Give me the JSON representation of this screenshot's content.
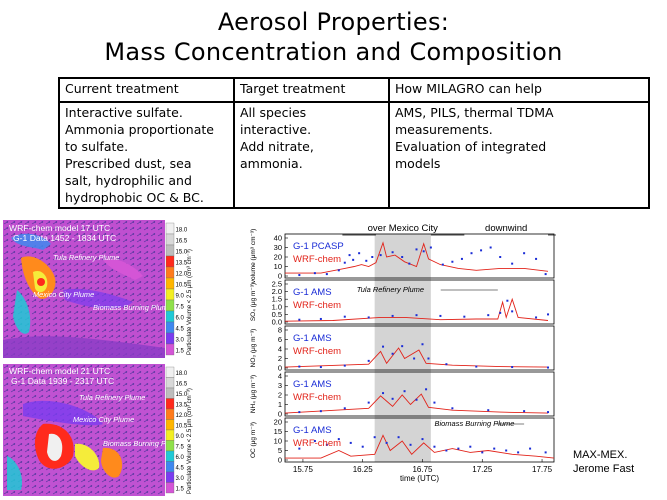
{
  "title": {
    "line1": "Aerosol Properties:",
    "line2": "Mass Concentration and Composition"
  },
  "table": {
    "headers": [
      "Current treatment",
      "Target treatment",
      "How MILAGRO can help"
    ],
    "rows": [
      [
        [
          "Interactive sulfate.",
          "Ammonia proportionate",
          "to sulfate.",
          "Prescribed dust, sea",
          "salt, hydrophilic and",
          "hydrophobic OC & BC."
        ],
        [
          "All species",
          "interactive.",
          "Add nitrate,",
          "ammonia."
        ],
        [
          "AMS, PILS, thermal TDMA",
          "measurements.",
          "Evaluation of integrated",
          "models"
        ]
      ]
    ]
  },
  "maps": [
    {
      "title1": "WRF-chem model 17 UTC",
      "title2": "G-1 Data 1452 - 1834 UTC",
      "labels": [
        "Tula Refinery Plume",
        "Mexico City Plume",
        "Biomass Burning Plume"
      ],
      "colorbar_ticks": [
        "18.0",
        "16.5",
        "15.0",
        "13.5",
        "12.0",
        "10.5",
        "9.0",
        "7.5",
        "6.0",
        "4.5",
        "3.0",
        "1.5"
      ],
      "colorbar_label": "Particulate Volume < 2.5 μm (cm³ cm⁻³)"
    },
    {
      "title1": "WRF-chem model 21 UTC",
      "title2": "G-1 Data 1939 - 2317 UTC",
      "labels": [
        "Tula Refinery Plume",
        "Mexico City Plume",
        "Biomass Burning Plume"
      ],
      "colorbar_ticks": [
        "18.0",
        "16.5",
        "15.0",
        "13.5",
        "12.0",
        "10.5",
        "9.0",
        "7.5",
        "6.0",
        "4.5",
        "3.0",
        "1.5"
      ],
      "colorbar_label": "Particulate Volume < 2.5 μm (cm³ cm⁻³)"
    }
  ],
  "colors": {
    "obs": "#1a2cd6",
    "model": "#e2231a",
    "shade": "#d4d4d4",
    "colorbar": [
      "#f0f0f0",
      "#d8d8d8",
      "#bdbdbd",
      "#ff2a1c",
      "#ff7b1c",
      "#ffb600",
      "#f2ee22",
      "#8fe04a",
      "#1fc9d6",
      "#3f88ef",
      "#7a3cf0",
      "#d455d6"
    ]
  },
  "chart_data": {
    "type": "line",
    "x_axis": {
      "label": "time (UTC)",
      "ticks": [
        "15.75",
        "16.25",
        "16.75",
        "17.25",
        "17.75"
      ],
      "range": [
        15.6,
        17.85
      ]
    },
    "region_labels": {
      "over_city": "over Mexico City",
      "downwind": "downwind"
    },
    "shaded_region": [
      16.35,
      16.82
    ],
    "panels": [
      {
        "ylabel": "volume (μm³ cm⁻³)",
        "yticks": [
          "0",
          "10",
          "20",
          "30",
          "40"
        ],
        "ylim": [
          0,
          40
        ],
        "obs_name": "G-1 PCASP",
        "model_name": "WRF-chem",
        "annotation": "",
        "obs": [
          [
            15.72,
            1
          ],
          [
            15.85,
            3
          ],
          [
            15.95,
            2
          ],
          [
            16.05,
            6
          ],
          [
            16.1,
            14
          ],
          [
            16.14,
            22
          ],
          [
            16.17,
            17
          ],
          [
            16.22,
            24
          ],
          [
            16.28,
            16
          ],
          [
            16.33,
            20
          ],
          [
            16.4,
            22
          ],
          [
            16.5,
            25
          ],
          [
            16.58,
            20
          ],
          [
            16.64,
            13
          ],
          [
            16.7,
            28
          ],
          [
            16.76,
            26
          ],
          [
            16.82,
            30
          ],
          [
            16.92,
            12
          ],
          [
            17.0,
            15
          ],
          [
            17.08,
            18
          ],
          [
            17.16,
            24
          ],
          [
            17.24,
            27
          ],
          [
            17.32,
            30
          ],
          [
            17.4,
            20
          ],
          [
            17.5,
            13
          ],
          [
            17.6,
            24
          ],
          [
            17.7,
            18
          ],
          [
            17.78,
            2
          ]
        ],
        "model": [
          [
            15.6,
            3
          ],
          [
            15.9,
            3
          ],
          [
            16.1,
            8
          ],
          [
            16.18,
            10
          ],
          [
            16.24,
            12
          ],
          [
            16.3,
            10
          ],
          [
            16.36,
            14
          ],
          [
            16.42,
            35
          ],
          [
            16.45,
            20
          ],
          [
            16.52,
            22
          ],
          [
            16.6,
            15
          ],
          [
            16.7,
            10
          ],
          [
            16.76,
            34
          ],
          [
            16.8,
            18
          ],
          [
            16.9,
            12
          ],
          [
            17.05,
            8
          ],
          [
            17.2,
            6
          ],
          [
            17.4,
            8
          ],
          [
            17.6,
            8
          ],
          [
            17.8,
            5
          ]
        ]
      },
      {
        "ylabel": "SO₄ (μg m⁻³)",
        "yticks": [
          "0.0",
          "0.5",
          "1.0",
          "1.5",
          "2.0",
          "2.5"
        ],
        "ylim": [
          0,
          2.5
        ],
        "obs_name": "G-1 AMS",
        "model_name": "WRF-chem",
        "annotation": "Tula Refinery Plume",
        "obs": [
          [
            15.72,
            0.15
          ],
          [
            15.9,
            0.2
          ],
          [
            16.1,
            0.35
          ],
          [
            16.3,
            0.3
          ],
          [
            16.5,
            0.4
          ],
          [
            16.7,
            0.45
          ],
          [
            16.9,
            0.4
          ],
          [
            17.1,
            0.35
          ],
          [
            17.3,
            0.45
          ],
          [
            17.4,
            0.6
          ],
          [
            17.46,
            1.4
          ],
          [
            17.5,
            0.7
          ],
          [
            17.7,
            0.3
          ],
          [
            17.8,
            0.5
          ]
        ],
        "model": [
          [
            15.6,
            0.05
          ],
          [
            16.0,
            0.1
          ],
          [
            16.4,
            0.3
          ],
          [
            16.6,
            0.3
          ],
          [
            16.9,
            0.15
          ],
          [
            17.2,
            0.2
          ],
          [
            17.38,
            0.2
          ],
          [
            17.42,
            1.3
          ],
          [
            17.45,
            0.3
          ],
          [
            17.5,
            1.5
          ],
          [
            17.55,
            0.3
          ],
          [
            17.8,
            0.1
          ]
        ]
      },
      {
        "ylabel": "NO₃ (μg m⁻³)",
        "yticks": [
          "0",
          "2",
          "4",
          "6",
          "8"
        ],
        "ylim": [
          0,
          8
        ],
        "obs_name": "G-1 AMS",
        "model_name": "WRF-chem",
        "annotation": "",
        "obs": [
          [
            15.72,
            0.3
          ],
          [
            15.9,
            0.2
          ],
          [
            16.1,
            0.5
          ],
          [
            16.3,
            1.5
          ],
          [
            16.42,
            4.5
          ],
          [
            16.5,
            3
          ],
          [
            16.58,
            4.6
          ],
          [
            16.68,
            2
          ],
          [
            16.75,
            5
          ],
          [
            16.8,
            2
          ],
          [
            16.95,
            0.8
          ],
          [
            17.2,
            0.3
          ],
          [
            17.5,
            0.2
          ],
          [
            17.8,
            0.1
          ]
        ],
        "model": [
          [
            15.6,
            0.2
          ],
          [
            16.3,
            0.8
          ],
          [
            16.4,
            3.5
          ],
          [
            16.45,
            1
          ],
          [
            16.55,
            4.2
          ],
          [
            16.6,
            2
          ],
          [
            16.72,
            3.8
          ],
          [
            16.78,
            1
          ],
          [
            17.0,
            0.6
          ],
          [
            17.4,
            0.3
          ],
          [
            17.8,
            0.2
          ]
        ]
      },
      {
        "ylabel": "NH₄ (μg m⁻³)",
        "yticks": [
          "0",
          "1",
          "2",
          "3",
          "4"
        ],
        "ylim": [
          0,
          4
        ],
        "obs_name": "G-1 AMS",
        "model_name": "WRF-chem",
        "annotation": "",
        "obs": [
          [
            15.72,
            0.2
          ],
          [
            15.9,
            0.3
          ],
          [
            16.1,
            0.6
          ],
          [
            16.3,
            1.2
          ],
          [
            16.42,
            2.2
          ],
          [
            16.5,
            1.6
          ],
          [
            16.6,
            2.4
          ],
          [
            16.7,
            1.5
          ],
          [
            16.78,
            2.6
          ],
          [
            16.85,
            1.2
          ],
          [
            17.0,
            0.6
          ],
          [
            17.3,
            0.4
          ],
          [
            17.6,
            0.3
          ],
          [
            17.8,
            0.2
          ]
        ],
        "model": [
          [
            15.6,
            0.1
          ],
          [
            16.3,
            0.6
          ],
          [
            16.4,
            1.9
          ],
          [
            16.5,
            0.8
          ],
          [
            16.58,
            2.0
          ],
          [
            16.65,
            1.0
          ],
          [
            16.74,
            2.1
          ],
          [
            16.8,
            0.7
          ],
          [
            17.0,
            0.4
          ],
          [
            17.4,
            0.2
          ],
          [
            17.8,
            0.1
          ]
        ]
      },
      {
        "ylabel": "OC (μg m⁻³)",
        "yticks": [
          "0",
          "5",
          "10",
          "15",
          "20"
        ],
        "ylim": [
          0,
          20
        ],
        "obs_name": "G-1 AMS",
        "model_name": "WRF-chem",
        "annotation": "Biomass Burning Plume",
        "obs": [
          [
            15.72,
            6
          ],
          [
            15.85,
            10
          ],
          [
            15.95,
            8
          ],
          [
            16.05,
            11
          ],
          [
            16.15,
            9
          ],
          [
            16.25,
            7
          ],
          [
            16.35,
            12
          ],
          [
            16.45,
            9
          ],
          [
            16.55,
            12
          ],
          [
            16.65,
            8
          ],
          [
            16.75,
            11
          ],
          [
            16.85,
            7
          ],
          [
            16.95,
            5
          ],
          [
            17.05,
            6
          ],
          [
            17.15,
            7
          ],
          [
            17.25,
            4
          ],
          [
            17.35,
            6
          ],
          [
            17.45,
            5
          ],
          [
            17.55,
            4
          ],
          [
            17.65,
            6
          ],
          [
            17.78,
            4
          ]
        ],
        "model": [
          [
            15.6,
            1
          ],
          [
            15.9,
            1
          ],
          [
            16.05,
            5
          ],
          [
            16.15,
            2
          ],
          [
            16.35,
            3
          ],
          [
            16.42,
            13
          ],
          [
            16.48,
            5
          ],
          [
            16.58,
            10
          ],
          [
            16.66,
            3
          ],
          [
            16.76,
            9
          ],
          [
            16.85,
            4
          ],
          [
            17.0,
            6
          ],
          [
            17.15,
            4
          ],
          [
            17.3,
            5
          ],
          [
            17.5,
            3
          ],
          [
            17.7,
            2
          ],
          [
            17.85,
            1
          ]
        ]
      }
    ]
  },
  "credit": {
    "line1": "MAX-MEX.",
    "line2": "Jerome Fast"
  }
}
